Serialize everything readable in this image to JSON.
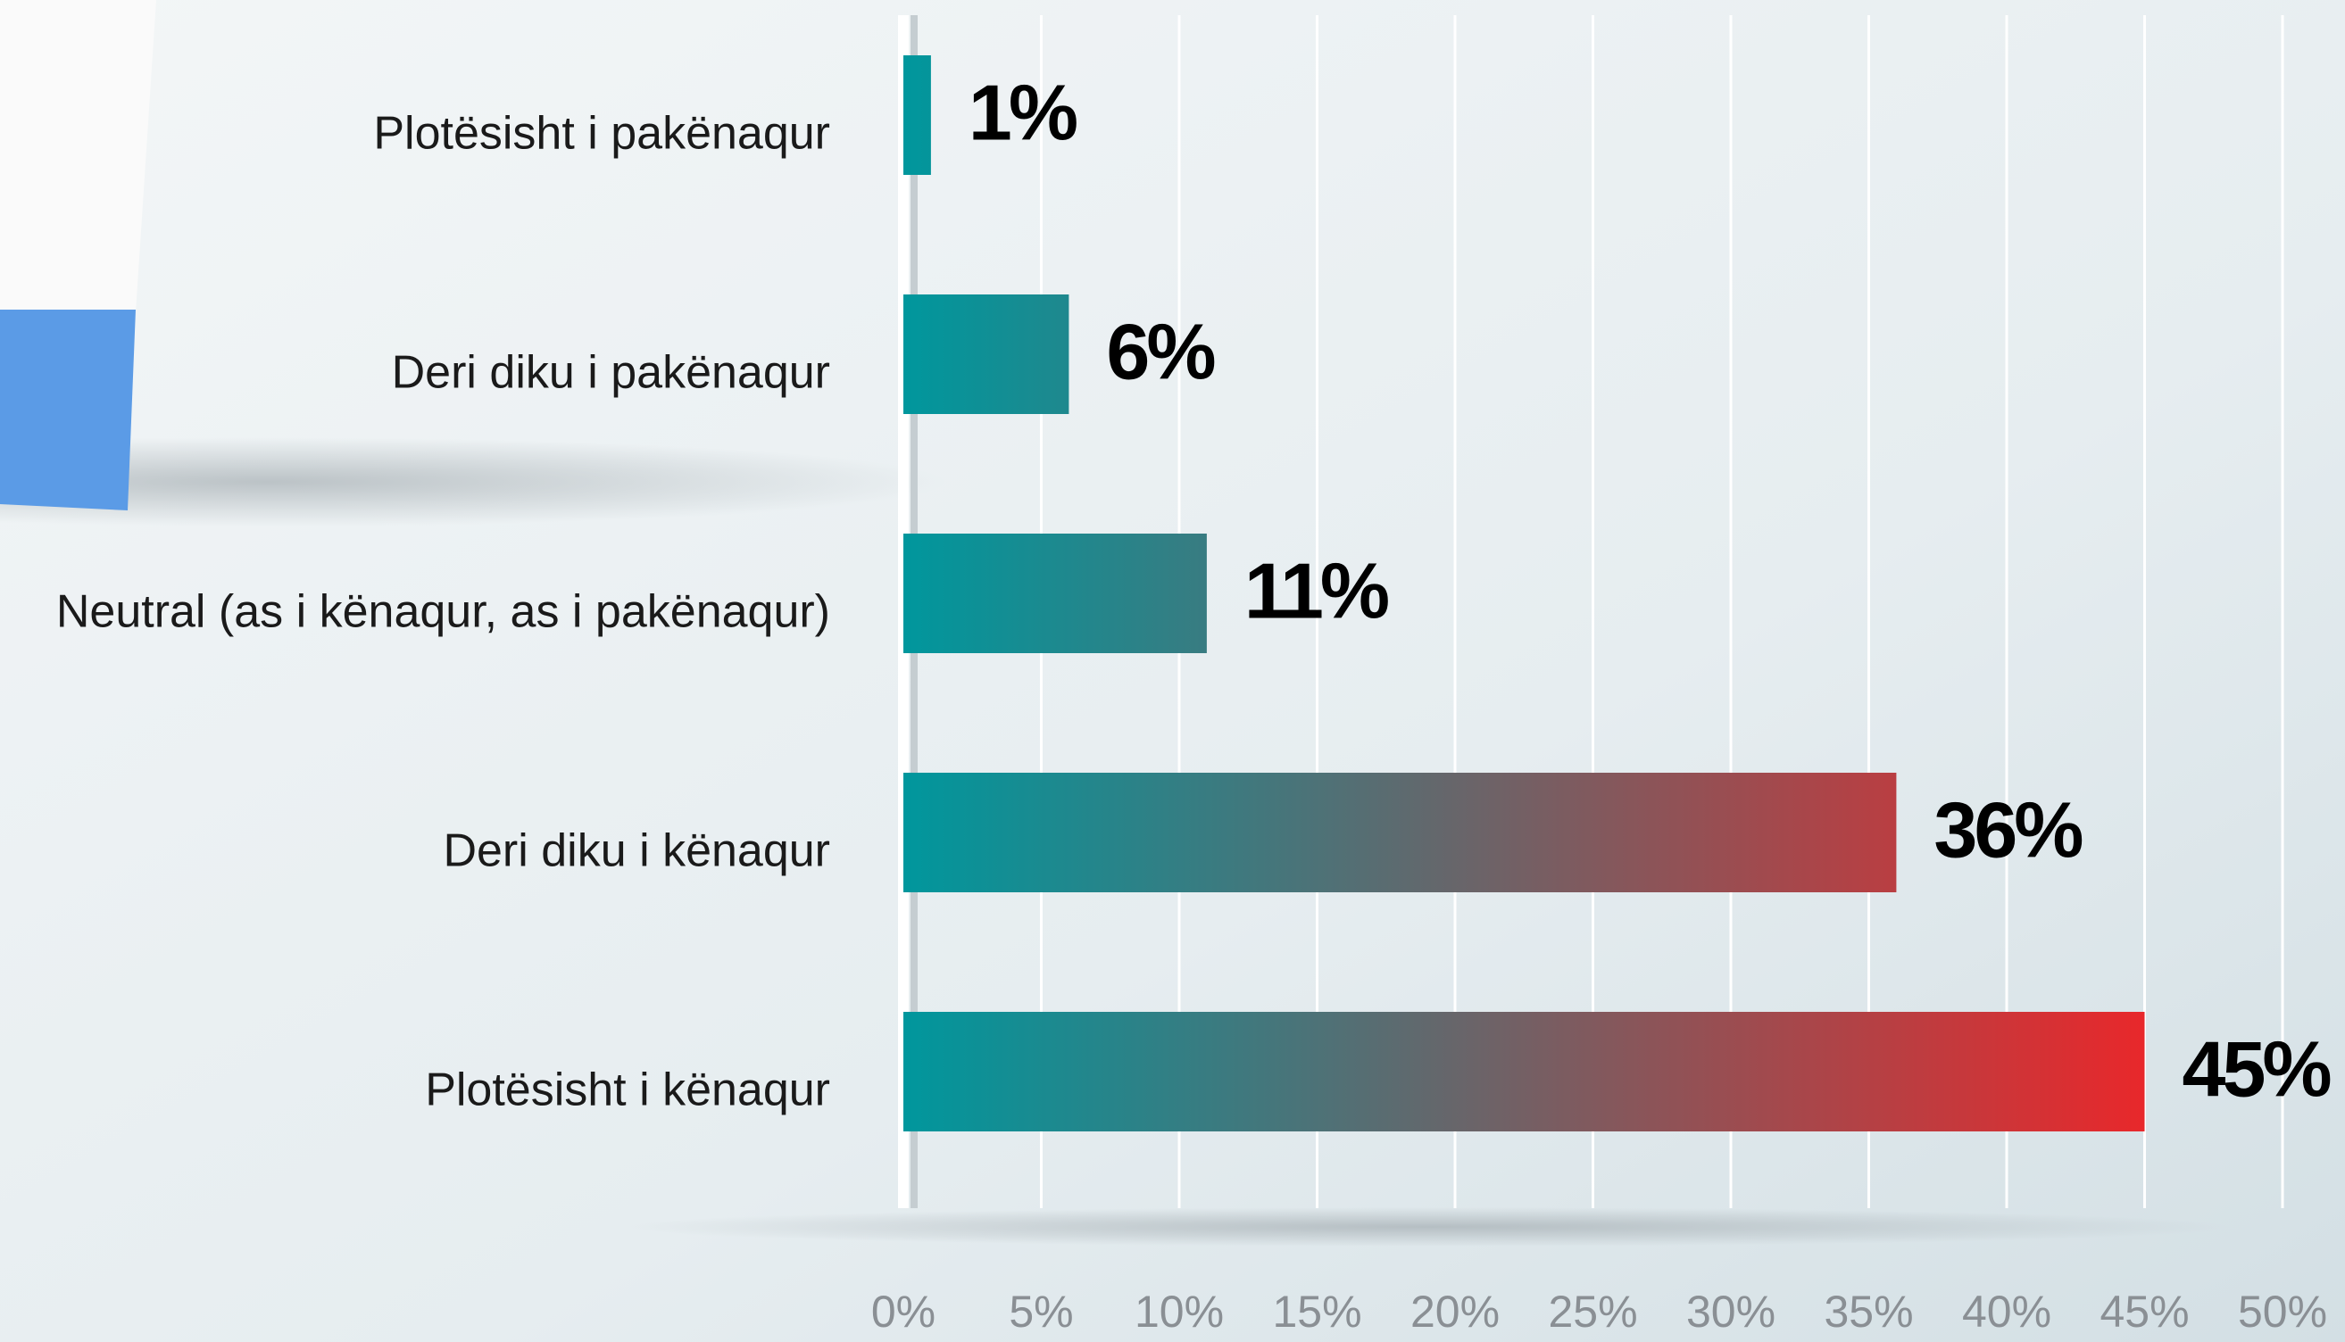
{
  "chart_data": {
    "type": "bar",
    "orientation": "horizontal",
    "categories": [
      "Plotësisht i pakënaqur",
      "Deri diku i pakënaqur",
      "Neutral (as i kënaqur, as i pakënaqur)",
      "Deri diku i kënaqur",
      "Plotësisht i kënaqur"
    ],
    "values": [
      1,
      6,
      11,
      36,
      45
    ],
    "value_labels": [
      "1%",
      "6%",
      "11%",
      "36%",
      "45%"
    ],
    "gradient": [
      "#00979d",
      "#e8282b"
    ],
    "xlim": [
      0,
      50
    ],
    "xticks": [
      {
        "value": 0,
        "label": "0%"
      },
      {
        "value": 5,
        "label": "5%"
      },
      {
        "value": 10,
        "label": "10%"
      },
      {
        "value": 15,
        "label": "15%"
      },
      {
        "value": 20,
        "label": "20%"
      },
      {
        "value": 25,
        "label": "25%"
      },
      {
        "value": 30,
        "label": "30%"
      },
      {
        "value": 35,
        "label": "35%"
      },
      {
        "value": 40,
        "label": "40%"
      },
      {
        "value": 45,
        "label": "45%"
      },
      {
        "value": 50,
        "label": "50%"
      }
    ],
    "grid": true
  }
}
